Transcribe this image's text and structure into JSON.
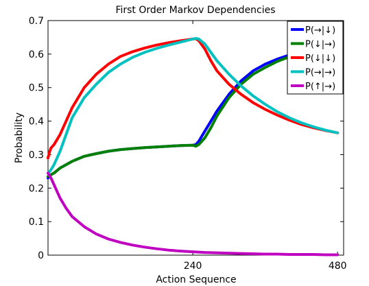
{
  "chart_data": {
    "type": "line",
    "title": "First Order Markov Dependencies",
    "xlabel": "Action Sequence",
    "ylabel": "Probability",
    "xlim": [
      0,
      490
    ],
    "ylim": [
      0,
      0.7
    ],
    "xticks": [
      240,
      480
    ],
    "xtick_labels": [
      "240",
      "480"
    ],
    "yticks": [
      0,
      0.1,
      0.2,
      0.3,
      0.4,
      0.5,
      0.6,
      0.7
    ],
    "ytick_labels": [
      "0",
      "0.1",
      "0.2",
      "0.3",
      "0.4",
      "0.5",
      "0.6",
      "0.7"
    ],
    "grid": false,
    "legend_position": "top-right",
    "series": [
      {
        "name": "P(→|↓)",
        "color": "#0000ff",
        "x": [
          0,
          5,
          10,
          20,
          30,
          40,
          60,
          80,
          100,
          120,
          140,
          160,
          180,
          200,
          220,
          240,
          245,
          250,
          260,
          270,
          280,
          300,
          320,
          340,
          360,
          380,
          400,
          420
        ],
        "y": [
          0.23,
          0.24,
          0.245,
          0.26,
          0.27,
          0.28,
          0.295,
          0.303,
          0.31,
          0.315,
          0.318,
          0.321,
          0.323,
          0.325,
          0.327,
          0.328,
          0.33,
          0.34,
          0.37,
          0.4,
          0.43,
          0.48,
          0.52,
          0.55,
          0.57,
          0.585,
          0.597,
          0.605
        ]
      },
      {
        "name": "P(↓|→)",
        "color": "#008000",
        "x": [
          0,
          5,
          10,
          20,
          30,
          40,
          60,
          80,
          100,
          120,
          140,
          160,
          180,
          200,
          220,
          240,
          245,
          250,
          260,
          270,
          280,
          300,
          320,
          340,
          360,
          380,
          400,
          420
        ],
        "y": [
          0.235,
          0.24,
          0.245,
          0.26,
          0.27,
          0.28,
          0.295,
          0.303,
          0.31,
          0.315,
          0.318,
          0.321,
          0.323,
          0.325,
          0.327,
          0.328,
          0.325,
          0.33,
          0.35,
          0.38,
          0.415,
          0.47,
          0.51,
          0.54,
          0.56,
          0.578,
          0.592,
          0.6
        ]
      },
      {
        "name": "P(↓|↓)",
        "color": "#ff0000",
        "x": [
          0,
          3,
          5,
          10,
          20,
          30,
          40,
          60,
          80,
          100,
          120,
          140,
          160,
          180,
          200,
          220,
          240,
          245,
          250,
          260,
          270,
          280,
          300,
          320,
          340,
          360,
          380,
          400,
          420,
          440,
          460,
          480
        ],
        "y": [
          0.29,
          0.31,
          0.32,
          0.33,
          0.36,
          0.4,
          0.44,
          0.5,
          0.54,
          0.57,
          0.593,
          0.607,
          0.618,
          0.627,
          0.634,
          0.64,
          0.645,
          0.646,
          0.64,
          0.615,
          0.58,
          0.55,
          0.51,
          0.48,
          0.455,
          0.435,
          0.418,
          0.403,
          0.39,
          0.38,
          0.372,
          0.365
        ]
      },
      {
        "name": "P(→|→)",
        "color": "#00c0c0",
        "x": [
          0,
          3,
          5,
          10,
          20,
          30,
          40,
          60,
          80,
          100,
          120,
          140,
          160,
          180,
          200,
          220,
          240,
          245,
          250,
          260,
          270,
          280,
          300,
          320,
          340,
          360,
          380,
          400,
          420,
          440,
          460,
          480
        ],
        "y": [
          0.245,
          0.25,
          0.255,
          0.27,
          0.31,
          0.36,
          0.41,
          0.47,
          0.51,
          0.545,
          0.57,
          0.59,
          0.605,
          0.617,
          0.627,
          0.636,
          0.645,
          0.647,
          0.645,
          0.63,
          0.605,
          0.58,
          0.54,
          0.505,
          0.475,
          0.45,
          0.428,
          0.41,
          0.395,
          0.383,
          0.373,
          0.365
        ]
      },
      {
        "name": "P(↑|→)",
        "color": "#c000c0",
        "x": [
          0,
          5,
          10,
          20,
          30,
          40,
          60,
          80,
          100,
          120,
          140,
          160,
          180,
          200,
          220,
          240,
          260,
          280,
          300,
          320,
          340,
          360,
          380,
          400,
          420,
          440,
          460,
          480
        ],
        "y": [
          0.245,
          0.23,
          0.21,
          0.17,
          0.14,
          0.115,
          0.085,
          0.063,
          0.048,
          0.038,
          0.03,
          0.024,
          0.019,
          0.015,
          0.012,
          0.01,
          0.008,
          0.007,
          0.006,
          0.005,
          0.004,
          0.003,
          0.003,
          0.002,
          0.002,
          0.002,
          0.001,
          0.001
        ]
      }
    ]
  }
}
